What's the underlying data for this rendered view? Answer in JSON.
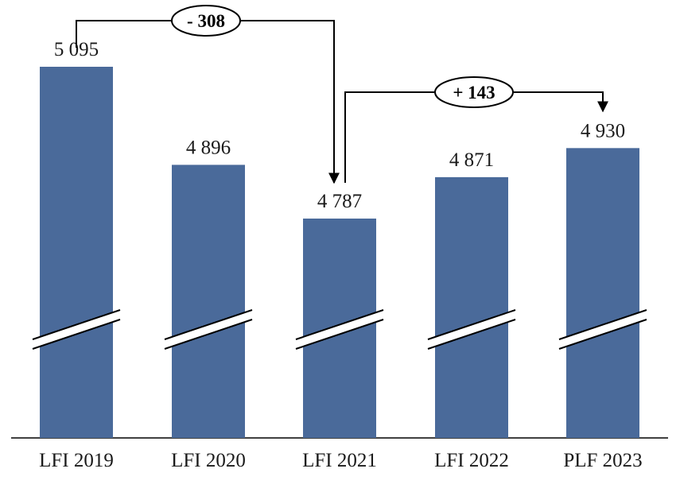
{
  "chart_data": {
    "type": "bar",
    "categories": [
      "LFI 2019",
      "LFI 2020",
      "LFI 2021",
      "LFI 2022",
      "PLF 2023"
    ],
    "values": [
      5095,
      4896,
      4787,
      4871,
      4930
    ],
    "value_labels": [
      "5 095",
      "4 896",
      "4 787",
      "4 871",
      "4 930"
    ],
    "axis_break": true,
    "colors": {
      "bar": "#4a6a9a"
    },
    "annotations": [
      {
        "label": "- 308",
        "from_category": "LFI 2019",
        "to_category": "LFI 2021"
      },
      {
        "label": "+ 143",
        "from_category": "LFI 2021",
        "to_category": "PLF 2023"
      }
    ]
  }
}
